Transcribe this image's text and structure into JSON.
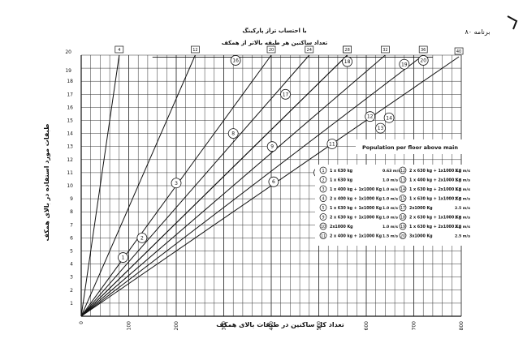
{
  "page": {
    "top_right": "برنامه ۸۰",
    "top_center": "با احتساب تراز پارکینگ"
  },
  "chart_data": {
    "type": "line",
    "title": "تعداد ساکنین هر طبقه بالاتر از همکف",
    "xlabel": "تعداد کل ساکنین در طبقات بالای همکف",
    "ylabel": "طبقات مورد استفاده در بالای همکف",
    "xlim": [
      0,
      800
    ],
    "ylim": [
      0,
      20
    ],
    "x_ticks": [
      0,
      100,
      200,
      300,
      400,
      500,
      600,
      700,
      800
    ],
    "y_ticks": [
      1,
      2,
      3,
      4,
      5,
      6,
      7,
      8,
      9,
      10,
      11,
      12,
      13,
      14,
      15,
      16,
      17,
      18,
      19,
      20
    ],
    "y_tick_labels_top": [
      "19",
      "20"
    ],
    "grid": true,
    "rays": [
      {
        "label": "4",
        "per_floor": 4
      },
      {
        "label": "12",
        "per_floor": 12
      },
      {
        "label": "20",
        "per_floor": 20
      },
      {
        "label": "28",
        "per_floor": 28
      },
      {
        "label": "24",
        "per_floor": 24
      },
      {
        "label": "28",
        "per_floor": 28
      },
      {
        "label": "32",
        "per_floor": 32
      },
      {
        "label": "36",
        "per_floor": 36
      },
      {
        "label": "40",
        "per_floor": 40
      }
    ],
    "region_markers": [
      {
        "id": "1",
        "x": 88,
        "y": 4.5
      },
      {
        "id": "2",
        "x": 128,
        "y": 6.0
      },
      {
        "id": "3",
        "x": 200,
        "y": 10.2
      },
      {
        "id": "6",
        "x": 405,
        "y": 10.3
      },
      {
        "id": "8",
        "x": 320,
        "y": 14.0
      },
      {
        "id": "9",
        "x": 402,
        "y": 13.0
      },
      {
        "id": "10",
        "x": 500,
        "y": 11.0
      },
      {
        "id": "11",
        "x": 528,
        "y": 13.2
      },
      {
        "id": "12",
        "x": 608,
        "y": 15.3
      },
      {
        "id": "13",
        "x": 630,
        "y": 14.4
      },
      {
        "id": "14",
        "x": 648,
        "y": 15.2
      },
      {
        "id": "16",
        "x": 325,
        "y": 19.6
      },
      {
        "id": "17",
        "x": 430,
        "y": 17.0
      },
      {
        "id": "18",
        "x": 560,
        "y": 19.5
      },
      {
        "id": "19",
        "x": 680,
        "y": 19.3
      },
      {
        "id": "20",
        "x": 720,
        "y": 19.6
      }
    ],
    "annotation": "Population per floor above main",
    "legend_left": [
      {
        "id": "1",
        "text": "1 x 630 kg",
        "speed": "0.63 m/s"
      },
      {
        "id": "2",
        "text": "1 x 630 kg",
        "speed": "1.0 m/s"
      },
      {
        "id": "3",
        "text": "1 x 400 kg + 1x1000 Kg",
        "speed": "1.0 m/s"
      },
      {
        "id": "4",
        "text": "2 x 400 kg + 1x1000 Kg",
        "speed": "1.0 m/s"
      },
      {
        "id": "5",
        "text": "1 x 630 kg + 1x1000 Kg",
        "speed": "1.0 m/s"
      },
      {
        "id": "9",
        "text": "2 x 630 kg + 1x1000 Kg",
        "speed": "1.0 m/s"
      },
      {
        "id": "10",
        "text": "2x1000 Kg",
        "speed": "1.0 m/s"
      },
      {
        "id": "11",
        "text": "2 x 400 kg + 1x1000 Kg",
        "speed": "1.5 m/s"
      }
    ],
    "legend_right": [
      {
        "id": "12",
        "text": "2 x 630 kg + 1x1000 Kg",
        "speed": "1.5 m/s"
      },
      {
        "id": "13",
        "text": "1 x 400 kg + 2x1000 Kg",
        "speed": "1.5 m/s"
      },
      {
        "id": "14",
        "text": "1 x 630 kg + 2x1000 Kg",
        "speed": "1.5 m/s"
      },
      {
        "id": "15",
        "text": "1 x 630 kg + 1x1000 Kg",
        "speed": "2.5 m/s"
      },
      {
        "id": "17",
        "text": "2x1000 Kg",
        "speed": "2.5 m/s"
      },
      {
        "id": "18",
        "text": "2 x 630 kg + 1x1000 Kg",
        "speed": "2.5 m/s"
      },
      {
        "id": "19",
        "text": "1 x 630 kg + 2x1000 Kg",
        "speed": "2.5 m/s"
      },
      {
        "id": "20",
        "text": "3x1000 Kg",
        "speed": "2.5 m/s"
      }
    ]
  }
}
